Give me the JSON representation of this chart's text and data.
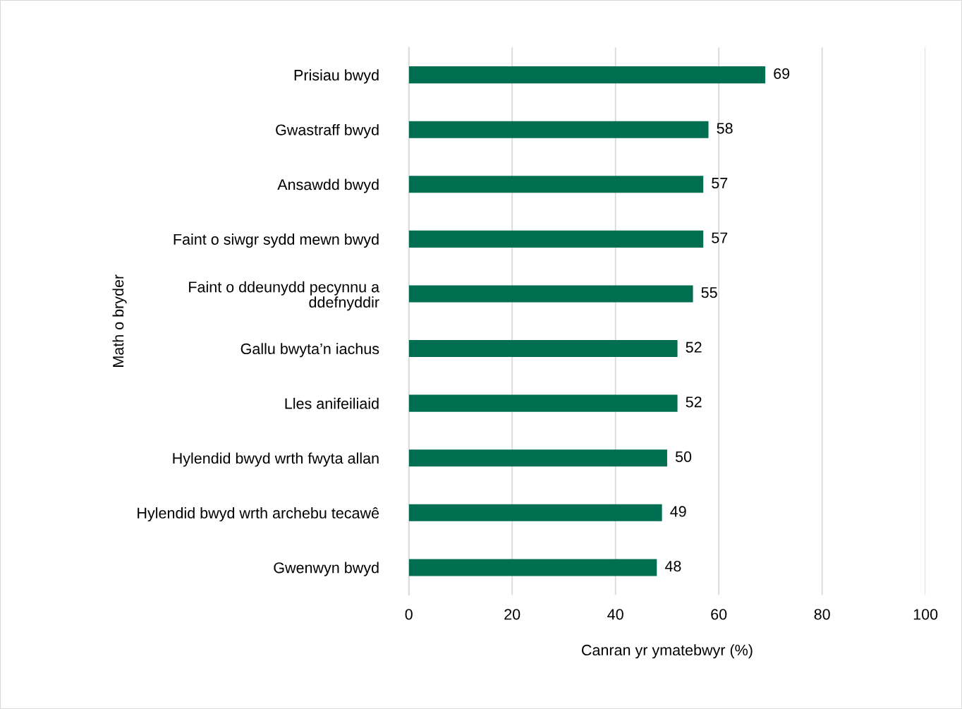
{
  "chart_data": {
    "type": "bar",
    "orientation": "horizontal",
    "categories": [
      "Prisiau bwyd",
      "Gwastraff bwyd",
      "Ansawdd bwyd",
      "Faint o siwgr sydd mewn bwyd",
      "Faint o ddeunydd pecynnu a ddefnyddir",
      "Gallu bwyta’n iachus",
      "Lles anifeiliaid",
      "Hylendid bwyd wrth fwyta allan",
      "Hylendid bwyd wrth archebu tecawê",
      "Gwenwyn bwyd"
    ],
    "values": [
      69,
      58,
      57,
      57,
      55,
      52,
      52,
      50,
      49,
      48
    ],
    "color": "#006f51",
    "xlim": [
      0,
      100
    ],
    "xticks": [
      0,
      20,
      40,
      60,
      80,
      100
    ],
    "xlabel": "Canran yr ymatebwyr (%)",
    "ylabel": "Math o bryder",
    "grid": "x",
    "data_labels": true
  }
}
